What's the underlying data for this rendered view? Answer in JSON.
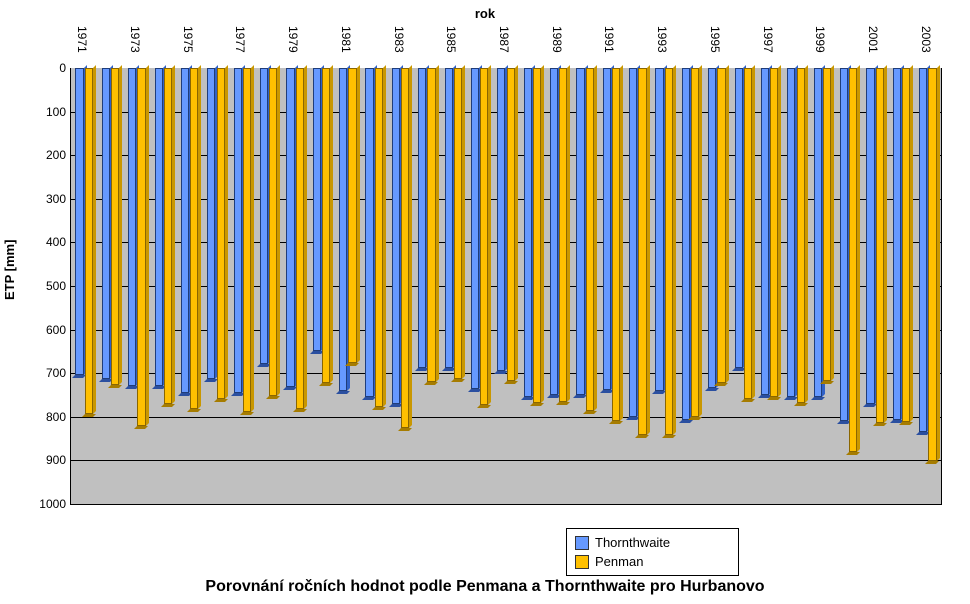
{
  "title": "Porovnání ročních hodnot podle Penmana a Thornthwaite pro Hurbanovo",
  "x_axis_title": "rok",
  "y_axis_title": "ETP [mm]",
  "type": "bar",
  "orientation": "hanging",
  "ylim": [
    0,
    1000
  ],
  "ytick_step": 100,
  "y_ticks": [
    0,
    100,
    200,
    300,
    400,
    500,
    600,
    700,
    800,
    900,
    1000
  ],
  "plot_background": "#c0c0c0",
  "grid_color": "#000000",
  "page_background": "#ffffff",
  "title_fontsize": 16,
  "axis_title_fontsize": 13,
  "tick_fontsize": 12,
  "legend_fontsize": 13,
  "x_tick_rotation": 90,
  "x_tick_interval": 2,
  "series": [
    {
      "name": "Thornthwaite",
      "key": "t",
      "color": "#6699ff",
      "shade": "#3061c7",
      "bottom_shade": "#2a4fa0",
      "border": "#1f3d7a"
    },
    {
      "name": "Penman",
      "key": "p",
      "color": "#ffc000",
      "shade": "#c99700",
      "bottom_shade": "#a67c00",
      "border": "#8a6600"
    }
  ],
  "legend": {
    "position": "inside-bottom-center",
    "bg": "#ffffff",
    "border": "#000000"
  },
  "categories": [
    {
      "year": 1971,
      "t": 704,
      "p": 793
    },
    {
      "year": 1972,
      "t": 714,
      "p": 727
    },
    {
      "year": 1973,
      "t": 730,
      "p": 820
    },
    {
      "year": 1974,
      "t": 729,
      "p": 771
    },
    {
      "year": 1975,
      "t": 745,
      "p": 782
    },
    {
      "year": 1976,
      "t": 714,
      "p": 760
    },
    {
      "year": 1977,
      "t": 745,
      "p": 788
    },
    {
      "year": 1978,
      "t": 679,
      "p": 752
    },
    {
      "year": 1979,
      "t": 731,
      "p": 783
    },
    {
      "year": 1980,
      "t": 649,
      "p": 723
    },
    {
      "year": 1981,
      "t": 740,
      "p": 676
    },
    {
      "year": 1982,
      "t": 755,
      "p": 777
    },
    {
      "year": 1983,
      "t": 770,
      "p": 825
    },
    {
      "year": 1984,
      "t": 689,
      "p": 720
    },
    {
      "year": 1985,
      "t": 688,
      "p": 714
    },
    {
      "year": 1986,
      "t": 737,
      "p": 773
    },
    {
      "year": 1987,
      "t": 695,
      "p": 718
    },
    {
      "year": 1988,
      "t": 754,
      "p": 768
    },
    {
      "year": 1989,
      "t": 751,
      "p": 765
    },
    {
      "year": 1990,
      "t": 749,
      "p": 786
    },
    {
      "year": 1991,
      "t": 739,
      "p": 810
    },
    {
      "year": 1992,
      "t": 800,
      "p": 841
    },
    {
      "year": 1993,
      "t": 741,
      "p": 842
    },
    {
      "year": 1994,
      "t": 807,
      "p": 800
    },
    {
      "year": 1995,
      "t": 735,
      "p": 722
    },
    {
      "year": 1996,
      "t": 688,
      "p": 759
    },
    {
      "year": 1997,
      "t": 749,
      "p": 755
    },
    {
      "year": 1998,
      "t": 755,
      "p": 769
    },
    {
      "year": 1999,
      "t": 755,
      "p": 717
    },
    {
      "year": 2000,
      "t": 810,
      "p": 880
    },
    {
      "year": 2001,
      "t": 770,
      "p": 815
    },
    {
      "year": 2002,
      "t": 807,
      "p": 812
    },
    {
      "year": 2003,
      "t": 835,
      "p": 902
    }
  ]
}
